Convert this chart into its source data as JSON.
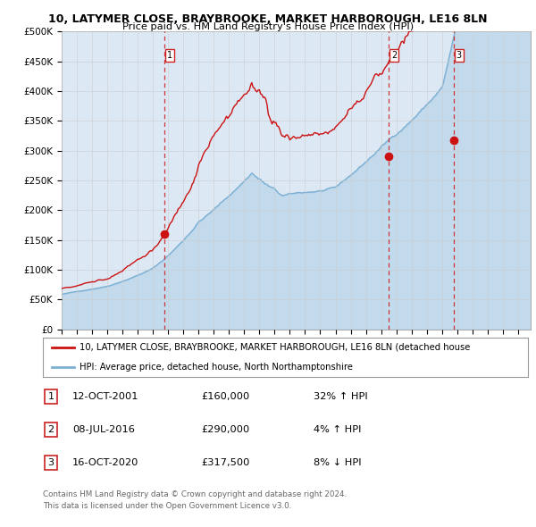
{
  "title1": "10, LATYMER CLOSE, BRAYBROOKE, MARKET HARBOROUGH, LE16 8LN",
  "title2": "Price paid vs. HM Land Registry's House Price Index (HPI)",
  "ylabel_ticks": [
    "£0",
    "£50K",
    "£100K",
    "£150K",
    "£200K",
    "£250K",
    "£300K",
    "£350K",
    "£400K",
    "£450K",
    "£500K"
  ],
  "ytick_vals": [
    0,
    50000,
    100000,
    150000,
    200000,
    250000,
    300000,
    350000,
    400000,
    450000,
    500000
  ],
  "xlim_start": 1995.0,
  "xlim_end": 2025.83,
  "ylim_min": 0,
  "ylim_max": 500000,
  "bg_color": "#dce9f5",
  "grid_color": "#ffffff",
  "hpi_line_color": "#7bafd4",
  "price_line_color": "#cc1111",
  "sale_marker_color": "#cc1111",
  "legend_label_price": "10, LATYMER CLOSE, BRAYBROOKE, MARKET HARBOROUGH, LE16 8LN (detached house",
  "legend_label_hpi": "HPI: Average price, detached house, North Northamptonshire",
  "transactions": [
    {
      "num": 1,
      "date": "12-OCT-2001",
      "year": 2001.78,
      "price": 160000,
      "pct": "32%",
      "dir": "↑"
    },
    {
      "num": 2,
      "date": "08-JUL-2016",
      "year": 2016.52,
      "price": 290000,
      "pct": "4%",
      "dir": "↑"
    },
    {
      "num": 3,
      "date": "16-OCT-2020",
      "year": 2020.79,
      "price": 317500,
      "pct": "8%",
      "dir": "↓"
    }
  ],
  "footnote1": "Contains HM Land Registry data © Crown copyright and database right 2024.",
  "footnote2": "This data is licensed under the Open Government Licence v3.0."
}
